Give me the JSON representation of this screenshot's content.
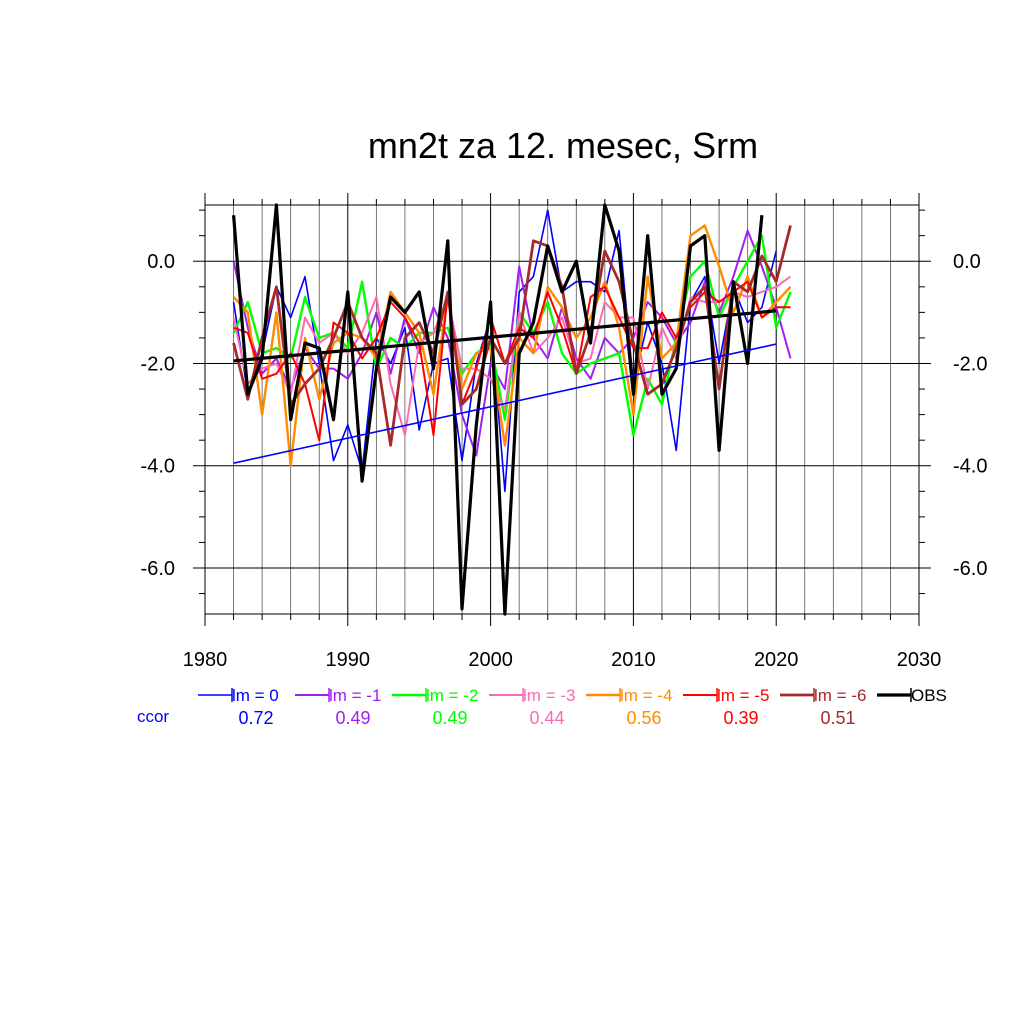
{
  "chart_data": {
    "type": "line",
    "title": "mn2t za 12. mesec, Srm",
    "xlabel": "",
    "ylabel": "",
    "xlim": [
      1980,
      2030
    ],
    "ylim": [
      -6.9,
      1.1
    ],
    "x_ticks": [
      1980,
      1990,
      2000,
      2010,
      2020,
      2030
    ],
    "x_tick_labels": [
      "1980",
      "1990",
      "2000",
      "2010",
      "2020",
      "2030"
    ],
    "y_ticks": [
      0.0,
      -2.0,
      -4.0,
      -6.0
    ],
    "y_tick_labels": [
      "0.0",
      "-2.0",
      "-4.0",
      "-6.0"
    ],
    "grid": true,
    "legend_position": "bottom",
    "ccor_label": "ccor",
    "series": [
      {
        "name": "lm = 0",
        "color": "#0000ff",
        "ccor": "0.72",
        "width": 1.6,
        "x": [
          1982,
          1983,
          1984,
          1985,
          1986,
          1987,
          1988,
          1989,
          1990,
          1991,
          1992,
          1993,
          1994,
          1995,
          1996,
          1997,
          1998,
          1999,
          2000,
          2001,
          2002,
          2003,
          2004,
          2005,
          2006,
          2007,
          2008,
          2009,
          2010,
          2011,
          2012,
          2013,
          2014,
          2015,
          2016,
          2017,
          2018,
          2019,
          2020
        ],
        "y": [
          -0.8,
          -2.6,
          -1.8,
          -0.5,
          -1.1,
          -0.3,
          -2.0,
          -3.9,
          -3.2,
          -4.1,
          -1.5,
          -2.0,
          -1.3,
          -3.3,
          -2.0,
          -1.9,
          -3.9,
          -2.0,
          -1.1,
          -4.5,
          -0.6,
          -0.3,
          1.0,
          -0.6,
          -0.4,
          -0.4,
          -0.6,
          0.6,
          -2.4,
          -1.2,
          -2.0,
          -3.7,
          -0.8,
          -0.3,
          -2.0,
          -0.5,
          -1.2,
          -0.9,
          0.2
        ]
      },
      {
        "name": "lm = -1",
        "color": "#a020f0",
        "ccor": "0.49",
        "width": 2,
        "x": [
          1982,
          1983,
          1984,
          1985,
          1986,
          1987,
          1988,
          1989,
          1990,
          1991,
          1992,
          1993,
          1994,
          1995,
          1996,
          1997,
          1998,
          1999,
          2000,
          2001,
          2002,
          2003,
          2004,
          2005,
          2006,
          2007,
          2008,
          2009,
          2010,
          2011,
          2012,
          2013,
          2014,
          2015,
          2016,
          2017,
          2018,
          2019,
          2020,
          2021
        ],
        "y": [
          0.0,
          -1.3,
          -2.2,
          -1.9,
          -2.5,
          -1.7,
          -2.1,
          -2.1,
          -2.3,
          -1.8,
          -1.0,
          -2.2,
          -1.1,
          -1.8,
          -0.9,
          -1.5,
          -3.0,
          -3.8,
          -2.0,
          -2.5,
          -0.1,
          -1.5,
          -1.9,
          -0.9,
          -1.9,
          -2.3,
          -1.5,
          -1.8,
          -1.5,
          -0.8,
          -1.1,
          -1.6,
          -1.2,
          -0.4,
          -1.0,
          -0.3,
          0.6,
          -0.1,
          -0.9,
          -1.9
        ]
      },
      {
        "name": "lm = -2",
        "color": "#00ff00",
        "ccor": "0.49",
        "width": 2.4,
        "x": [
          1982,
          1983,
          1984,
          1985,
          1986,
          1987,
          1988,
          1989,
          1990,
          1991,
          1992,
          1993,
          1994,
          1995,
          1996,
          1997,
          1998,
          1999,
          2000,
          2001,
          2002,
          2003,
          2004,
          2005,
          2006,
          2007,
          2008,
          2009,
          2010,
          2011,
          2012,
          2013,
          2014,
          2015,
          2016,
          2017,
          2018,
          2019,
          2020,
          2021
        ],
        "y": [
          -1.4,
          -0.8,
          -1.8,
          -1.7,
          -1.9,
          -0.7,
          -1.5,
          -1.4,
          -1.7,
          -0.4,
          -2.1,
          -1.5,
          -1.7,
          -1.4,
          -1.4,
          -1.3,
          -2.2,
          -1.8,
          -1.6,
          -3.1,
          -1.0,
          -1.4,
          -0.8,
          -1.8,
          -2.2,
          -2.0,
          -1.9,
          -1.8,
          -3.4,
          -2.3,
          -2.8,
          -1.5,
          -0.3,
          0.0,
          -1.1,
          -0.5,
          0.0,
          0.5,
          -1.3,
          -0.6
        ]
      },
      {
        "name": "lm = -3",
        "color": "#ff69b4",
        "ccor": "0.44",
        "width": 2,
        "x": [
          1982,
          1983,
          1984,
          1985,
          1986,
          1987,
          1988,
          1989,
          1990,
          1991,
          1992,
          1993,
          1994,
          1995,
          1996,
          1997,
          1998,
          1999,
          2000,
          2001,
          2002,
          2003,
          2004,
          2005,
          2006,
          2007,
          2008,
          2009,
          2010,
          2011,
          2012,
          2013,
          2014,
          2015,
          2016,
          2017,
          2018,
          2019,
          2020,
          2021
        ],
        "y": [
          -1.1,
          -2.4,
          -2.1,
          -2.0,
          -2.6,
          -1.1,
          -1.6,
          -1.4,
          -1.8,
          -1.4,
          -0.7,
          -2.4,
          -3.4,
          -1.6,
          -1.4,
          -0.7,
          -2.1,
          -2.1,
          -2.3,
          -2.9,
          -1.0,
          -1.8,
          -1.5,
          -1.1,
          -2.0,
          -1.9,
          -0.8,
          -1.1,
          -1.1,
          -2.5,
          -1.3,
          -1.9,
          -0.7,
          -0.8,
          -0.8,
          -0.6,
          -0.7,
          -0.6,
          -0.5,
          -0.3
        ]
      },
      {
        "name": "lm = -4",
        "color": "#ff8c00",
        "ccor": "0.56",
        "width": 2.4,
        "x": [
          1982,
          1983,
          1984,
          1985,
          1986,
          1987,
          1988,
          1989,
          1990,
          1991,
          1992,
          1993,
          1994,
          1995,
          1996,
          1997,
          1998,
          1999,
          2000,
          2001,
          2002,
          2003,
          2004,
          2005,
          2006,
          2007,
          2008,
          2009,
          2010,
          2011,
          2012,
          2013,
          2014,
          2015,
          2016,
          2017,
          2018,
          2019,
          2020,
          2021
        ],
        "y": [
          -0.7,
          -1.0,
          -3.0,
          -1.0,
          -4.0,
          -1.5,
          -2.7,
          -1.6,
          -1.4,
          -1.5,
          -1.9,
          -0.6,
          -1.0,
          -1.4,
          -2.6,
          -0.7,
          -2.5,
          -1.8,
          -1.7,
          -3.6,
          -1.5,
          -1.8,
          -0.5,
          -0.9,
          -1.5,
          -1.1,
          -0.4,
          -1.3,
          -3.0,
          -0.3,
          -1.9,
          -1.6,
          0.5,
          0.7,
          -0.1,
          -1.0,
          -0.3,
          -1.1,
          -0.8,
          -0.5
        ]
      },
      {
        "name": "lm = -5",
        "color": "#ff0000",
        "ccor": "0.39",
        "width": 2,
        "x": [
          1982,
          1983,
          1984,
          1985,
          1986,
          1987,
          1988,
          1989,
          1990,
          1991,
          1992,
          1993,
          1994,
          1995,
          1996,
          1997,
          1998,
          1999,
          2000,
          2001,
          2002,
          2003,
          2004,
          2005,
          2006,
          2007,
          2008,
          2009,
          2010,
          2011,
          2012,
          2013,
          2014,
          2015,
          2016,
          2017,
          2018,
          2019,
          2020,
          2021
        ],
        "y": [
          -1.3,
          -1.4,
          -2.3,
          -2.2,
          -1.8,
          -2.4,
          -3.5,
          -1.2,
          -1.4,
          -1.9,
          -1.5,
          -0.8,
          -1.1,
          -1.6,
          -3.4,
          -0.6,
          -2.8,
          -2.1,
          -1.1,
          -2.0,
          -1.3,
          -1.5,
          -0.6,
          -1.3,
          -2.2,
          -0.7,
          -0.5,
          -1.1,
          -1.7,
          -1.7,
          -1.0,
          -1.5,
          -0.9,
          -0.6,
          -0.8,
          -0.6,
          -0.4,
          -1.1,
          -0.9,
          -0.9
        ]
      },
      {
        "name": "lm = -6",
        "color": "#a52a2a",
        "ccor": "0.51",
        "width": 2.8,
        "x": [
          1982,
          1983,
          1984,
          1985,
          1986,
          1987,
          1988,
          1989,
          1990,
          1991,
          1992,
          1993,
          1994,
          1995,
          1996,
          1997,
          1998,
          1999,
          2000,
          2001,
          2002,
          2003,
          2004,
          2005,
          2006,
          2007,
          2008,
          2009,
          2010,
          2011,
          2012,
          2013,
          2014,
          2015,
          2016,
          2017,
          2018,
          2019,
          2020,
          2021
        ],
        "y": [
          -1.6,
          -2.7,
          -1.5,
          -0.5,
          -2.8,
          -2.4,
          -2.1,
          -1.5,
          -0.8,
          -1.5,
          -1.8,
          -3.6,
          -1.5,
          -1.2,
          -1.8,
          -0.6,
          -2.8,
          -2.5,
          -1.5,
          -2.0,
          -1.5,
          0.4,
          0.3,
          -0.5,
          -2.2,
          -1.4,
          0.2,
          -0.4,
          -1.6,
          -2.6,
          -2.4,
          -1.7,
          -0.8,
          -0.5,
          -2.5,
          -0.4,
          -0.6,
          0.1,
          -0.4,
          0.7
        ]
      },
      {
        "name": "OBS",
        "color": "#000000",
        "ccor": "",
        "width": 3.2,
        "x": [
          1982,
          1983,
          1984,
          1985,
          1986,
          1987,
          1988,
          1989,
          1990,
          1991,
          1992,
          1993,
          1994,
          1995,
          1996,
          1997,
          1998,
          1999,
          2000,
          2001,
          2002,
          2003,
          2004,
          2005,
          2006,
          2007,
          2008,
          2009,
          2010,
          2011,
          2012,
          2013,
          2014,
          2015,
          2016,
          2017,
          2018,
          2019
        ],
        "y": [
          0.9,
          -2.6,
          -1.9,
          1.1,
          -3.1,
          -1.6,
          -1.7,
          -3.1,
          -0.6,
          -4.3,
          -2.1,
          -0.7,
          -1.0,
          -0.6,
          -2.1,
          0.4,
          -6.8,
          -3.2,
          -0.8,
          -6.9,
          -1.8,
          -1.2,
          0.3,
          -0.6,
          0.0,
          -1.6,
          1.1,
          0.2,
          -2.6,
          0.5,
          -2.6,
          -2.1,
          0.3,
          0.5,
          -3.7,
          -0.4,
          -2.0,
          0.9
        ]
      }
    ],
    "trend_lines": [
      {
        "name": "lm = 0 trend",
        "color": "#0000ff",
        "width": 1.6,
        "x": [
          1982,
          2020
        ],
        "y": [
          -3.95,
          -1.62
        ]
      },
      {
        "name": "OBS trend",
        "color": "#000000",
        "width": 3.2,
        "x": [
          1982,
          2020
        ],
        "y": [
          -1.95,
          -0.97
        ]
      }
    ]
  }
}
